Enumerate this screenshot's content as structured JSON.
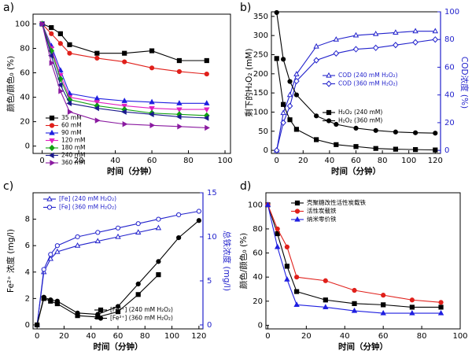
{
  "chart_data": [
    {
      "type": "line",
      "title": "a)",
      "x_label": "时间（分钟）",
      "y_label": "颜色/颜色₀ (%)",
      "xlim": [
        -5,
        103
      ],
      "xticks": [
        0,
        20,
        40,
        60,
        80,
        100
      ],
      "ylim": [
        -6,
        108
      ],
      "yticks": [
        0,
        20,
        40,
        60,
        80,
        100
      ],
      "series": [
        {
          "name": "35 mM",
          "color": "#000000",
          "marker": "square",
          "x": [
            0,
            5,
            10,
            15,
            30,
            45,
            60,
            75,
            90
          ],
          "values": [
            100,
            97,
            92,
            83,
            76,
            76,
            78,
            70,
            70
          ]
        },
        {
          "name": "60 mM",
          "color": "#e0201b",
          "marker": "circle",
          "x": [
            0,
            5,
            10,
            15,
            30,
            45,
            60,
            75,
            90
          ],
          "values": [
            100,
            92,
            84,
            76,
            72,
            69,
            64,
            61,
            59
          ]
        },
        {
          "name": "90 mM",
          "color": "#1f1fe0",
          "marker": "triangle-up",
          "x": [
            0,
            5,
            10,
            15,
            30,
            45,
            60,
            75,
            90
          ],
          "values": [
            100,
            82,
            62,
            43,
            39,
            37,
            36,
            35,
            35
          ]
        },
        {
          "name": "120 mM",
          "color": "#e020c0",
          "marker": "triangle-down",
          "x": [
            0,
            5,
            10,
            15,
            30,
            45,
            60,
            75,
            90
          ],
          "values": [
            100,
            80,
            58,
            40,
            36,
            33,
            31,
            30,
            30
          ]
        },
        {
          "name": "180 mM",
          "color": "#10a010",
          "marker": "diamond",
          "x": [
            0,
            5,
            10,
            15,
            30,
            45,
            60,
            75,
            90
          ],
          "values": [
            100,
            78,
            55,
            38,
            33,
            30,
            27,
            26,
            25
          ]
        },
        {
          "name": "240 mM",
          "color": "#1a1a8c",
          "marker": "triangle-left",
          "x": [
            0,
            5,
            10,
            15,
            30,
            45,
            60,
            75,
            90
          ],
          "values": [
            100,
            74,
            50,
            35,
            31,
            28,
            26,
            24,
            23
          ]
        },
        {
          "name": "360 mM",
          "color": "#8a1aa0",
          "marker": "triangle-right",
          "x": [
            0,
            5,
            10,
            15,
            30,
            45,
            60,
            75,
            90
          ],
          "values": [
            100,
            68,
            45,
            28,
            21,
            18,
            17,
            16,
            15
          ]
        }
      ]
    },
    {
      "type": "line",
      "title": "b)",
      "x_label": "时间（分钟）",
      "y_label": "剩下的H₂O₂ (mM)",
      "y2_label": "COD浓度 (%)",
      "y2_color": "#2222cc",
      "xlim": [
        -4,
        124
      ],
      "xticks": [
        0,
        20,
        40,
        60,
        80,
        100,
        120
      ],
      "ylim": [
        -8,
        362
      ],
      "yticks": [
        0,
        50,
        100,
        150,
        200,
        250,
        300,
        350
      ],
      "y2lim": [
        -2.2,
        100
      ],
      "y2ticks": [
        0,
        20,
        40,
        60,
        80,
        100
      ],
      "series": [
        {
          "name": "COD (240 mM H₂O₂)",
          "color": "#2222cc",
          "marker": "triangle-up",
          "open": true,
          "axis": "y2",
          "x": [
            0,
            5,
            10,
            15,
            30,
            45,
            60,
            75,
            90,
            105,
            120
          ],
          "values": [
            0,
            27,
            40,
            55,
            75,
            80,
            83,
            84,
            85,
            86,
            86
          ]
        },
        {
          "name": "COD (360 mM H₂O₂)",
          "color": "#2222cc",
          "marker": "diamond",
          "open": true,
          "axis": "y2",
          "x": [
            0,
            5,
            10,
            15,
            30,
            45,
            60,
            75,
            90,
            105,
            120
          ],
          "values": [
            0,
            20,
            32,
            50,
            65,
            70,
            73,
            74,
            76,
            78,
            80
          ]
        },
        {
          "name": "H₂O₂ (240 mM)",
          "color": "#000000",
          "marker": "square",
          "x": [
            0,
            5,
            10,
            15,
            30,
            45,
            60,
            75,
            90,
            105,
            120
          ],
          "values": [
            240,
            120,
            80,
            55,
            28,
            15,
            10,
            5,
            3,
            2,
            1
          ]
        },
        {
          "name": "H₂O₂ (360 mM)",
          "color": "#000000",
          "marker": "circle",
          "x": [
            0,
            5,
            10,
            15,
            30,
            45,
            60,
            75,
            90,
            105,
            120
          ],
          "values": [
            360,
            238,
            180,
            145,
            90,
            68,
            58,
            52,
            48,
            46,
            45
          ]
        }
      ]
    },
    {
      "type": "line",
      "title": "c)",
      "x_label": "时间（分钟）",
      "y_label": "Fe²⁺ 浓度 (mg/l)",
      "y2_label": "总铁浓度 (mg/l)",
      "y2_color": "#2222cc",
      "xlim": [
        -3,
        123
      ],
      "xticks": [
        0,
        20,
        40,
        60,
        80,
        100,
        120
      ],
      "ylim": [
        -0.3,
        10
      ],
      "yticks": [
        0,
        2,
        4,
        6,
        8
      ],
      "y2lim": [
        -0.45,
        15
      ],
      "y2ticks": [
        0,
        5,
        10,
        15
      ],
      "series": [
        {
          "name": "[Fe] (240 mM H₂O₂)",
          "color": "#2222cc",
          "marker": "triangle-up",
          "open": true,
          "axis": "y2",
          "x": [
            0,
            5,
            10,
            15,
            30,
            45,
            60,
            75,
            90
          ],
          "values": [
            0,
            6,
            7.5,
            8.3,
            9,
            9.5,
            10,
            10.5,
            11
          ]
        },
        {
          "name": "[Fe] (360 mM H₂O₂)",
          "color": "#2222cc",
          "marker": "circle",
          "open": true,
          "axis": "y2",
          "x": [
            0,
            5,
            10,
            15,
            30,
            45,
            60,
            75,
            90,
            105,
            120
          ],
          "values": [
            0,
            6.3,
            8,
            9,
            10,
            10.5,
            11,
            11.5,
            12,
            12.5,
            12.9
          ]
        },
        {
          "name": "[Fe²⁺] (240 mM H₂O₂)",
          "color": "#000000",
          "marker": "square",
          "x": [
            0,
            5,
            10,
            15,
            30,
            45,
            60,
            75,
            90
          ],
          "values": [
            0,
            2,
            1.8,
            1.6,
            0.7,
            0.6,
            1,
            2.3,
            3.8
          ]
        },
        {
          "name": "[Fe²⁺] (360 mM H₂O₂)",
          "color": "#000000",
          "marker": "circle",
          "x": [
            0,
            5,
            10,
            15,
            30,
            45,
            60,
            75,
            90,
            105,
            120
          ],
          "values": [
            0,
            2.1,
            1.9,
            1.8,
            0.9,
            0.8,
            1.4,
            3.1,
            4.8,
            6.6,
            7.9
          ]
        }
      ]
    },
    {
      "type": "line",
      "title": "d)",
      "x_label": "时间（分钟）",
      "y_label": "颜色/颜色₀ (%)",
      "xlim": [
        -1,
        100
      ],
      "xticks": [
        0,
        20,
        40,
        60,
        80,
        100
      ],
      "ylim": [
        -3,
        110
      ],
      "yticks": [
        0,
        20,
        40,
        60,
        80,
        100
      ],
      "series": [
        {
          "name": "壳聚糖改性活性炭载铁",
          "color": "#000000",
          "marker": "square",
          "x": [
            0,
            5,
            10,
            15,
            30,
            45,
            60,
            75,
            90
          ],
          "values": [
            100,
            76,
            49,
            28,
            21,
            18,
            17,
            15,
            15
          ]
        },
        {
          "name": "活性炭载铁",
          "color": "#e0201b",
          "marker": "circle",
          "x": [
            0,
            5,
            10,
            15,
            30,
            45,
            60,
            75,
            90
          ],
          "values": [
            100,
            80,
            65,
            40,
            37,
            29,
            25,
            21,
            19
          ]
        },
        {
          "name": "纳米零价铁",
          "color": "#1f1fe0",
          "marker": "triangle-up",
          "x": [
            0,
            5,
            10,
            15,
            30,
            45,
            60,
            75,
            90
          ],
          "values": [
            100,
            65,
            38,
            17,
            15,
            12,
            10,
            10,
            10
          ]
        }
      ]
    }
  ]
}
